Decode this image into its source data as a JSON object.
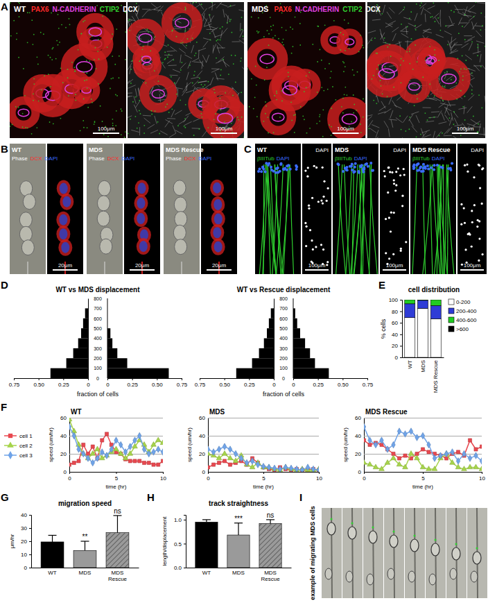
{
  "panels": {
    "A": {
      "letter": "A",
      "images": [
        {
          "condition": "WT"
        },
        {
          "condition": "MDS"
        }
      ],
      "markers": [
        {
          "text": "PAX6",
          "color": "#ff2a2a"
        },
        {
          "text": "N-CADHERIN",
          "color": "#e040e0"
        },
        {
          "text": "CTIP2",
          "color": "#30d030"
        },
        {
          "text": "DCX",
          "color": "#ffffff"
        }
      ],
      "scale_bar": "100μm"
    },
    "B": {
      "letter": "B",
      "conditions": [
        "WT",
        "MDS",
        "MDS Rescue"
      ],
      "channels": [
        {
          "text": "Phase",
          "color": "#ffffff"
        },
        {
          "text": "DCX",
          "color": "#ff2a2a"
        },
        {
          "text": "DAPI",
          "color": "#3a6cff"
        }
      ],
      "scale_bar": "20μm"
    },
    "C": {
      "letter": "C",
      "conditions": [
        "WT",
        "MDS",
        "MDS Rescue"
      ],
      "channels": [
        {
          "text": "βIIITub",
          "color": "#30d030"
        },
        {
          "text": "DAPI",
          "color": "#3a6cff"
        }
      ],
      "nuclear_channel": {
        "text": "DAPI",
        "color": "#ffffff"
      },
      "scale_bar": "100μm"
    },
    "D": {
      "letter": "D"
    },
    "E": {
      "letter": "E"
    },
    "F": {
      "letter": "F"
    },
    "G": {
      "letter": "G"
    },
    "H": {
      "letter": "H"
    },
    "I": {
      "letter": "I",
      "label": "example of migrating MDS cells"
    }
  },
  "chart_data": [
    {
      "type": "bar",
      "orientation": "horizontal",
      "title": "WT vs MDS displacement",
      "bins": [
        0,
        100,
        200,
        300,
        400,
        500,
        600,
        700,
        800
      ],
      "series": [
        {
          "color": "#000000",
          "values": [
            0.38,
            0.22,
            0.15,
            0.1,
            0.07,
            0.05,
            0.03,
            0
          ]
        },
        {
          "color": "#000000",
          "values": [
            0.62,
            0.2,
            0.1,
            0.05,
            0.03,
            0,
            0,
            0
          ]
        }
      ],
      "xlim": [
        0,
        0.75
      ],
      "xticks": [
        0,
        0.25,
        {
          "value": 0.5,
          "label": "0.50"
        },
        0.75
      ],
      "ylim": [
        0,
        800
      ],
      "yticks": [
        0,
        100,
        200,
        300,
        400,
        500,
        600,
        700,
        800
      ],
      "x_label": "fraction of cells"
    },
    {
      "type": "bar",
      "orientation": "horizontal",
      "title": "WT vs Rescue displacement",
      "bins": [
        0,
        100,
        200,
        300,
        400,
        500,
        600,
        700,
        800
      ],
      "series": [
        {
          "color": "#000000",
          "values": [
            0.38,
            0.22,
            0.15,
            0.1,
            0.07,
            0.05,
            0.03,
            0
          ]
        },
        {
          "color": "#000000",
          "values": [
            0.36,
            0.22,
            0.17,
            0.12,
            0.07,
            0.04,
            0.02,
            0
          ]
        }
      ],
      "xlim": [
        0,
        0.75
      ],
      "xticks": [
        0,
        0.25,
        {
          "value": 0.5,
          "label": "0.50"
        },
        0.75
      ],
      "ylim": [
        0,
        800
      ],
      "yticks": [
        0,
        100,
        200,
        300,
        400,
        500,
        600,
        700,
        800
      ],
      "x_label": "fraction of cells"
    },
    {
      "type": "bar",
      "stacked": true,
      "title": "cell distribution",
      "categories": [
        "WT",
        "MDS",
        "MDS Rescue"
      ],
      "series": [
        {
          "name": "0-200",
          "color": "#ffffff",
          "values": [
            69,
            85,
            67
          ]
        },
        {
          "name": "200-400",
          "color": "#2f3cd6",
          "values": [
            24,
            14,
            23
          ]
        },
        {
          "name": "400-600",
          "color": "#22cc22",
          "values": [
            7,
            1,
            10
          ]
        },
        {
          "name": ">600",
          "color": "#000000",
          "values": [
            0,
            0,
            0
          ]
        }
      ],
      "ylim": [
        0,
        100
      ],
      "yticks": [
        0,
        20,
        40,
        60,
        80,
        100
      ],
      "y_label": "% cells",
      "legend": "right"
    },
    {
      "type": "line",
      "title": "WT",
      "legend": "left",
      "grid": true,
      "x": [
        0,
        0.5,
        1,
        1.5,
        2,
        2.5,
        3,
        3.5,
        4,
        4.5,
        5,
        5.5,
        6,
        6.5,
        7,
        7.5,
        8,
        8.5,
        9,
        9.5,
        10
      ],
      "series": [
        {
          "name": "cell 1",
          "color": "#e8484f",
          "marker": "square",
          "values": [
            8,
            10,
            12,
            30,
            20,
            28,
            15,
            35,
            42,
            30,
            22,
            20,
            14,
            12,
            12,
            12,
            10,
            10,
            8,
            8,
            12
          ]
        },
        {
          "name": "cell 2",
          "color": "#a6d44a",
          "marker": "triangle",
          "values": [
            58,
            45,
            30,
            20,
            15,
            20,
            25,
            15,
            18,
            22,
            25,
            20,
            15,
            20,
            28,
            35,
            30,
            22,
            30,
            35,
            32
          ]
        },
        {
          "name": "cell 3",
          "color": "#6fa3e8",
          "marker": "diamond",
          "values": [
            50,
            40,
            25,
            20,
            15,
            10,
            15,
            22,
            18,
            25,
            35,
            30,
            22,
            28,
            35,
            40,
            25,
            20,
            22,
            25,
            22
          ]
        }
      ],
      "xlim": [
        0,
        10
      ],
      "xticks": [
        0,
        5,
        10
      ],
      "ylim": [
        0,
        60
      ],
      "yticks": [
        0,
        20,
        40,
        60
      ],
      "x_label": "time (hr)",
      "y_label": "speed (um/hr)"
    },
    {
      "type": "line",
      "title": "MDS",
      "grid": true,
      "x": [
        0,
        0.5,
        1,
        1.5,
        2,
        2.5,
        3,
        3.5,
        4,
        4.5,
        5,
        5.5,
        6,
        6.5,
        7,
        7.5,
        8,
        8.5,
        9,
        9.5,
        10
      ],
      "series": [
        {
          "color": "#e8484f",
          "marker": "square",
          "values": [
            5,
            8,
            10,
            12,
            8,
            10,
            12,
            8,
            15,
            10,
            5,
            3,
            2,
            5,
            3,
            2,
            3,
            2,
            2,
            3,
            2
          ]
        },
        {
          "color": "#a6d44a",
          "marker": "triangle",
          "values": [
            20,
            18,
            15,
            20,
            15,
            12,
            18,
            8,
            5,
            10,
            5,
            5,
            3,
            2,
            5,
            3,
            2,
            3,
            2,
            2,
            3
          ]
        },
        {
          "color": "#6fa3e8",
          "marker": "diamond",
          "values": [
            25,
            22,
            25,
            28,
            25,
            20,
            15,
            10,
            12,
            8,
            6,
            5,
            4,
            3,
            5,
            4,
            3,
            2,
            5,
            3,
            2
          ]
        }
      ],
      "xlim": [
        0,
        10
      ],
      "xticks": [
        0,
        5,
        10
      ],
      "ylim": [
        0,
        60
      ],
      "yticks": [
        0,
        20,
        40,
        60
      ],
      "x_label": "time (hr)",
      "y_label": "speed (um/hr)"
    },
    {
      "type": "line",
      "title": "MDS Rescue",
      "grid": true,
      "x": [
        0,
        0.5,
        1,
        1.5,
        2,
        2.5,
        3,
        3.5,
        4,
        4.5,
        5,
        5.5,
        6,
        6.5,
        7,
        7.5,
        8,
        8.5,
        9,
        9.5,
        10
      ],
      "series": [
        {
          "color": "#e8484f",
          "marker": "square",
          "values": [
            35,
            30,
            32,
            30,
            25,
            20,
            15,
            18,
            15,
            20,
            25,
            22,
            20,
            18,
            15,
            20,
            22,
            18,
            35,
            25,
            28
          ]
        },
        {
          "color": "#a6d44a",
          "marker": "triangle",
          "values": [
            10,
            8,
            5,
            3,
            10,
            15,
            8,
            5,
            20,
            15,
            5,
            3,
            3,
            15,
            20,
            10,
            5,
            3,
            5,
            5,
            3
          ]
        },
        {
          "color": "#6fa3e8",
          "marker": "diamond",
          "values": [
            50,
            35,
            30,
            35,
            25,
            30,
            45,
            42,
            45,
            38,
            40,
            30,
            15,
            18,
            20,
            22,
            12,
            20,
            15,
            18,
            12
          ]
        }
      ],
      "xlim": [
        0,
        10
      ],
      "xticks": [
        0,
        5,
        10
      ],
      "ylim": [
        0,
        60
      ],
      "yticks": [
        0,
        20,
        40,
        60
      ],
      "x_label": "time (hr)",
      "y_label": "speed (um/hr)"
    },
    {
      "type": "bar",
      "title": "migration speed",
      "categories": [
        "WT",
        "MDS",
        "MDS Rescue"
      ],
      "values": [
        19.5,
        13,
        26.5
      ],
      "errors": [
        5,
        7,
        13
      ],
      "colors": [
        "#000000",
        "#9a9a9a",
        "#9a9a9a"
      ],
      "annotations": [
        null,
        "**",
        "ns"
      ],
      "ylim": [
        0,
        40
      ],
      "yticks": [
        0,
        10,
        20,
        30,
        40
      ],
      "y_label": "μm/hr"
    },
    {
      "type": "bar",
      "title": "track straightness",
      "categories": [
        "WT",
        "MDS",
        "MDS Rescue"
      ],
      "values": [
        0.95,
        0.68,
        0.92
      ],
      "errors": [
        0.05,
        0.25,
        0.08
      ],
      "colors": [
        "#000000",
        "#9a9a9a",
        "#9a9a9a"
      ],
      "annotations": [
        null,
        "***",
        "ns"
      ],
      "ylim": [
        0,
        1.1
      ],
      "yticks": [
        {
          "value": 0,
          "label": "0.0"
        },
        0.5,
        {
          "value": 1,
          "label": "1.0"
        }
      ],
      "y_label": "length/displacement"
    }
  ]
}
